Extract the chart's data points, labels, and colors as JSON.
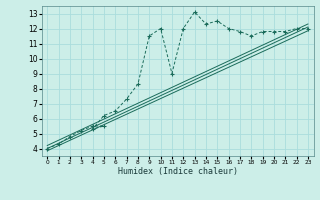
{
  "xlabel": "Humidex (Indice chaleur)",
  "bg_color": "#cceee8",
  "grid_color": "#aadddd",
  "line_color": "#1a6b5a",
  "xlim": [
    -0.5,
    23.5
  ],
  "ylim": [
    3.5,
    13.5
  ],
  "xticks": [
    0,
    1,
    2,
    3,
    4,
    5,
    6,
    7,
    8,
    9,
    10,
    11,
    12,
    13,
    14,
    15,
    16,
    17,
    18,
    19,
    20,
    21,
    22,
    23
  ],
  "yticks": [
    4,
    5,
    6,
    7,
    8,
    9,
    10,
    11,
    12,
    13
  ],
  "main_x": [
    0,
    1,
    2,
    3,
    4,
    5,
    4,
    5,
    6,
    7,
    8,
    9,
    10,
    11,
    12,
    13,
    14,
    15,
    16,
    17,
    18,
    19,
    20,
    21,
    22,
    23
  ],
  "main_y": [
    4.0,
    4.3,
    4.8,
    5.2,
    5.5,
    5.5,
    5.3,
    6.2,
    6.5,
    7.3,
    8.3,
    11.5,
    12.0,
    9.0,
    12.0,
    13.1,
    12.3,
    12.5,
    12.0,
    11.8,
    11.5,
    11.8,
    11.8,
    11.8,
    12.0,
    12.0
  ],
  "line1_x": [
    0,
    23
  ],
  "line1_y": [
    4.0,
    12.1
  ],
  "line2_x": [
    0,
    23
  ],
  "line2_y": [
    4.2,
    12.3
  ],
  "line3_x": [
    0,
    23
  ],
  "line3_y": [
    3.85,
    11.85
  ]
}
